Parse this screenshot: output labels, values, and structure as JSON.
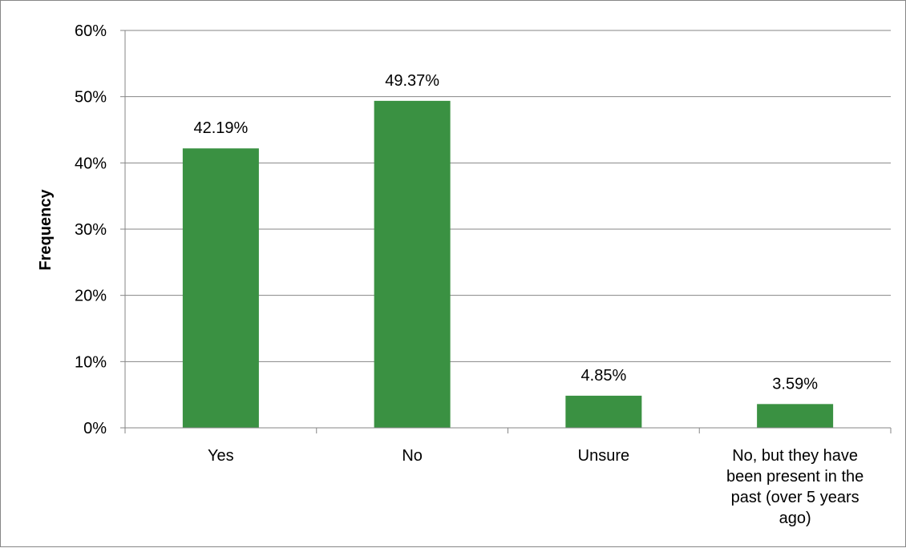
{
  "chart_data": {
    "type": "bar",
    "categories": [
      [
        "Yes"
      ],
      [
        "No"
      ],
      [
        "Unsure"
      ],
      [
        "No, but they have",
        "been present in the",
        "past (over 5 years",
        "ago)"
      ]
    ],
    "series": [
      {
        "values": [
          42.19,
          49.37,
          4.85,
          3.59
        ],
        "value_labels": [
          "42.19%",
          "49.37%",
          "4.85%",
          "3.59%"
        ],
        "color": "#3a9142"
      }
    ],
    "ylabel": "Frequency",
    "xlabel": "",
    "ylim": [
      0,
      60
    ],
    "yticks": [
      0,
      10,
      20,
      30,
      40,
      50,
      60
    ],
    "ytick_labels": [
      "0%",
      "10%",
      "20%",
      "30%",
      "40%",
      "50%",
      "60%"
    ],
    "grid": true,
    "legend": "none"
  }
}
